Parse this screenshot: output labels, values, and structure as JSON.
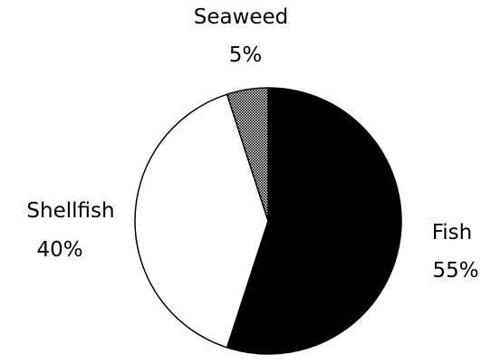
{
  "chart_data": {
    "type": "pie",
    "slices": [
      {
        "label": "Fish",
        "value": 55,
        "value_label": "55%",
        "color": "#000000",
        "pattern": "solid"
      },
      {
        "label": "Shellfish",
        "value": 40,
        "value_label": "40%",
        "color": "#ffffff",
        "pattern": "solid"
      },
      {
        "label": "Seaweed",
        "value": 5,
        "value_label": "5%",
        "color": "#9a9a9a",
        "pattern": "dotted"
      }
    ],
    "start": "12 o'clock",
    "direction": "clockwise",
    "outline_color": "#000000",
    "legend": "none"
  }
}
